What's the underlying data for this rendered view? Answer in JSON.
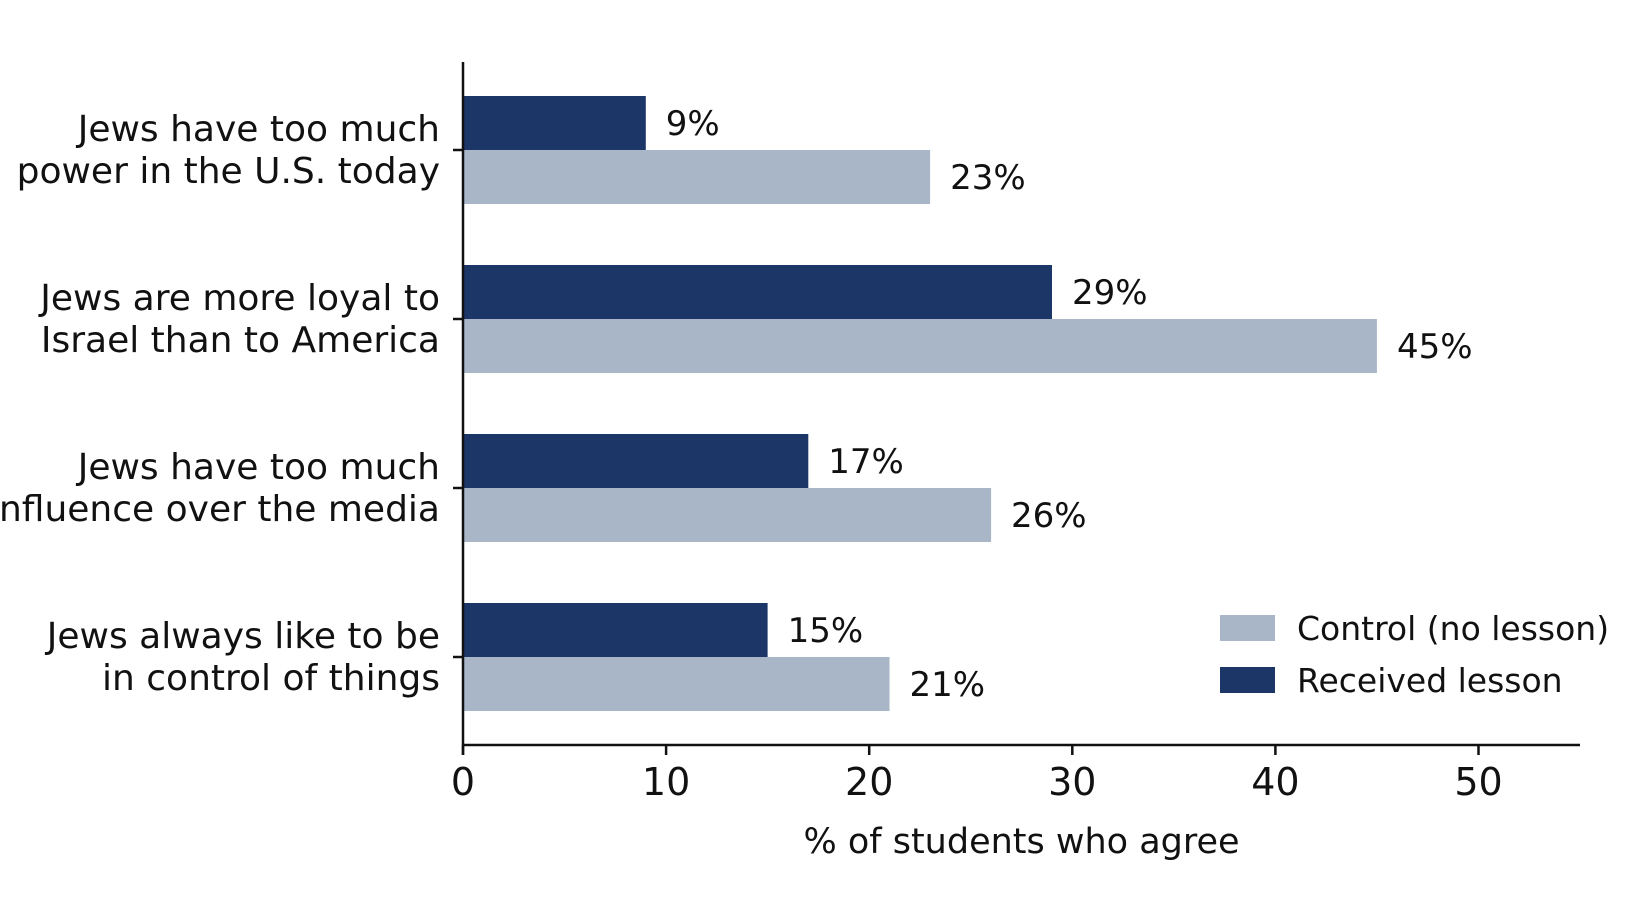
{
  "chart_data": {
    "type": "bar",
    "orientation": "horizontal",
    "categories": [
      [
        "Jews have too much",
        "power in the U.S. today"
      ],
      [
        "Jews are more loyal to",
        "Israel than to America"
      ],
      [
        "Jews have too much",
        "influence over the media"
      ],
      [
        "Jews always like to be",
        "in control of things"
      ]
    ],
    "series": [
      {
        "name": "Received lesson",
        "color": "#1d3668",
        "values": [
          9,
          29,
          17,
          15
        ],
        "labels": [
          "9%",
          "29%",
          "17%",
          "15%"
        ]
      },
      {
        "name": "Control (no lesson)",
        "color": "#a9b6c8",
        "values": [
          23,
          45,
          26,
          21
        ],
        "labels": [
          "23%",
          "45%",
          "26%",
          "21%"
        ]
      }
    ],
    "xlabel": "% of students who agree",
    "xticks": [
      "0",
      "10",
      "20",
      "30",
      "40",
      "50"
    ],
    "xtick_values": [
      0,
      10,
      20,
      30,
      40,
      50
    ],
    "xlim": [
      0,
      55
    ],
    "grid": false,
    "legend": {
      "placement": "bottom-right",
      "entries": [
        {
          "name": "Control (no lesson)",
          "color": "#a9b6c8"
        },
        {
          "name": "Received lesson",
          "color": "#1d3668"
        }
      ]
    }
  }
}
